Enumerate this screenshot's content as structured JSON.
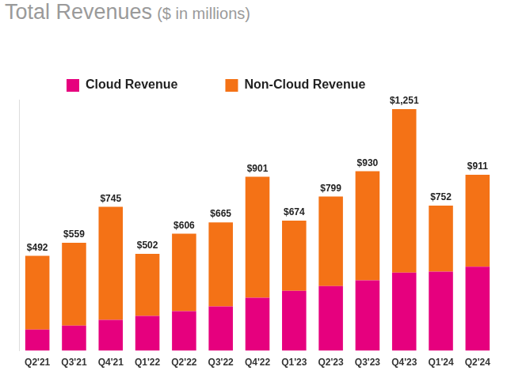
{
  "chart_data": {
    "type": "bar",
    "title": "Total Revenues",
    "subtitle": "($ in millions)",
    "categories": [
      "Q2'21",
      "Q3'21",
      "Q4'21",
      "Q1'22",
      "Q2'22",
      "Q3'22",
      "Q4'22",
      "Q1'23",
      "Q2'23",
      "Q3'23",
      "Q4'23",
      "Q1'24",
      "Q2'24"
    ],
    "series": [
      {
        "name": "Cloud Revenue",
        "color": "#e6007e",
        "values": [
          110,
          130,
          160,
          180,
          205,
          230,
          275,
          310,
          335,
          365,
          405,
          410,
          435
        ]
      },
      {
        "name": "Non-Cloud Revenue",
        "color": "#f47216",
        "values": [
          382,
          429,
          585,
          322,
          401,
          435,
          626,
          364,
          464,
          565,
          846,
          342,
          476
        ]
      }
    ],
    "totals": [
      492,
      559,
      745,
      502,
      606,
      665,
      901,
      674,
      799,
      930,
      1251,
      752,
      911
    ],
    "total_labels": [
      "$492",
      "$559",
      "$745",
      "$502",
      "$606",
      "$665",
      "$901",
      "$674",
      "$799",
      "$930",
      "$1,251",
      "$752",
      "$911"
    ],
    "ylim": [
      0,
      1300
    ],
    "stacked": true,
    "grid": false,
    "legend": "top left",
    "tick_labels": "x"
  }
}
